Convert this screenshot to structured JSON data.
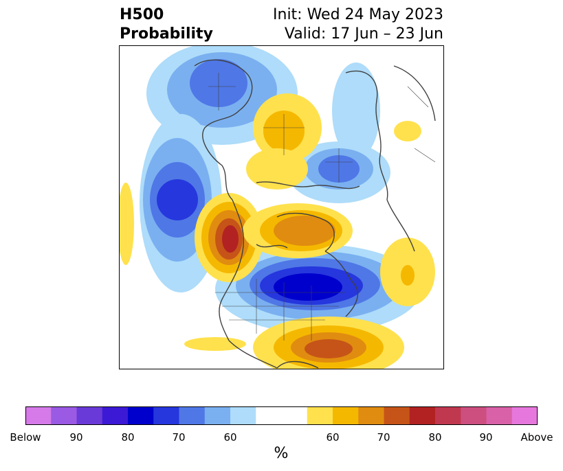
{
  "title": {
    "left_line1": "H500",
    "left_line2": "Probability",
    "right_line1": "Init: Wed 24 May 2023",
    "right_line2": "Valid: 17 Jun – 23 Jun"
  },
  "legend": {
    "unit": "%",
    "colors": [
      "#d57ae8",
      "#9a5ae3",
      "#6a3ad8",
      "#3c19d4",
      "#0000cd",
      "#2637dd",
      "#4f77e6",
      "#7ab0f0",
      "#aedcfa",
      "#ffffff",
      "#ffffff",
      "#ffe14d",
      "#f5b800",
      "#e08c10",
      "#c65418",
      "#b22222",
      "#c0384e",
      "#cc4f80",
      "#d961a8",
      "#e678dd"
    ],
    "labels": [
      "Below",
      "90",
      "80",
      "70",
      "60",
      "60",
      "70",
      "80",
      "90",
      "Above"
    ]
  }
}
